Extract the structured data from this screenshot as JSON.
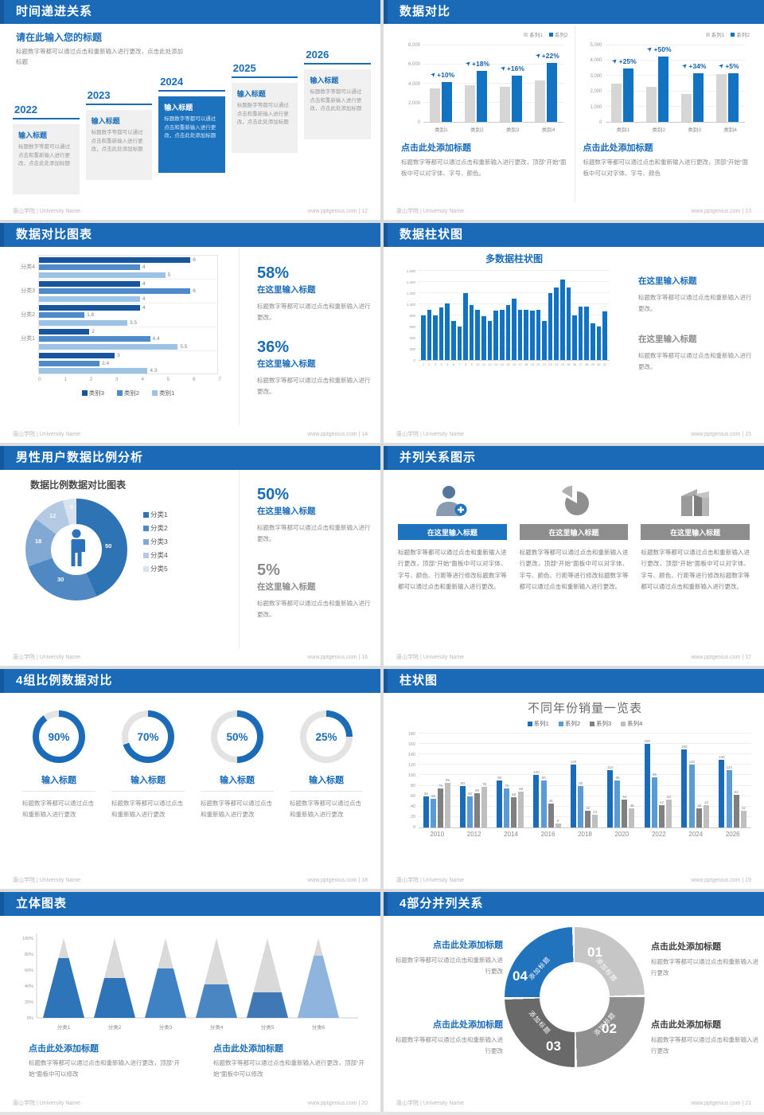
{
  "footer": {
    "left": "唐山学院 | University Name",
    "site": "www.pptgenius.com"
  },
  "colors": {
    "header_blue": "#1a6ab8",
    "accent_blue": "#1b6cb8",
    "bar_blue": "#1273c2",
    "bar_gray": "#d6d6d6",
    "series4": [
      "#1b6cb8",
      "#5b9bd5",
      "#808080",
      "#bfbfbf"
    ],
    "hbar": [
      "#17559e",
      "#4e8bc8",
      "#9cc3e6"
    ],
    "donut": [
      "#2e74b5",
      "#4f88c2",
      "#82a9d4",
      "#b4c9e2",
      "#d9e3f0"
    ],
    "cones": [
      "#2e74b8",
      "#2e74b8",
      "#3f82c4",
      "#4a86c2",
      "#3f78b4",
      "#8fb4de"
    ],
    "cone_gray": "#d9d9d9",
    "ring4": [
      "#c6c6c6",
      "#8f8f8f",
      "#696969",
      "#2173bd"
    ]
  },
  "slides": [
    {
      "title": "时间递进关系",
      "page": "12",
      "footer_right": "www.pptgenius.com | 12",
      "intro_title": "请在此输入您的标题",
      "intro_body": "标题数字等都可以通过点击和重新输入进行更改，点击此处添加标题",
      "items": [
        {
          "year": "2022",
          "title": "输入标题",
          "body": "标题数字等都可以通过点击和重新输入进行更改，点击此处添加标题",
          "active": false
        },
        {
          "year": "2023",
          "title": "输入标题",
          "body": "标题数字等都可以通过点击和重新输入进行更改，点击此处添加标题",
          "active": false
        },
        {
          "year": "2024",
          "title": "输入标题",
          "body": "标题数字等都可以通过点击和重新输入进行更改，点击此处添加标题",
          "active": true
        },
        {
          "year": "2025",
          "title": "输入标题",
          "body": "标题数字等都可以通过点击和重新输入进行更改，点击此处添加标题",
          "active": false
        },
        {
          "year": "2026",
          "title": "输入标题",
          "body": "标题数字等都可以通过点击和重新输入进行更改，点击此处添加标题",
          "active": false
        }
      ]
    },
    {
      "title": "数据对比",
      "page": "13",
      "footer_right": "www.pptgenius.com | 13",
      "charts": [
        {
          "type": "bar",
          "legend": [
            "系列1",
            "系列2"
          ],
          "ymax": 8000,
          "yticks": [
            "8,000",
            "6,000",
            "4,000",
            "2,000",
            "0"
          ],
          "categories": [
            "类别1",
            "类别2",
            "类别3",
            "类别4"
          ],
          "series1": [
            3500,
            3800,
            3700,
            4300
          ],
          "series2": [
            4200,
            5300,
            4800,
            6200
          ],
          "pct": [
            "+10%",
            "+18%",
            "+16%",
            "+22%"
          ],
          "heading": "点击此处添加标题",
          "body": "标题数字等都可以通过点击和重新输入进行更改，顶部“开始”面板中可以对字体、字号、颜色。"
        },
        {
          "type": "bar",
          "legend": [
            "系列1",
            "系列2"
          ],
          "ymax": 5000,
          "yticks": [
            "5,000",
            "4,000",
            "3,000",
            "2,000",
            "1,000",
            "0"
          ],
          "categories": [
            "类别1",
            "类别2",
            "类别3",
            "类别4"
          ],
          "series1": [
            2500,
            2300,
            1800,
            3100
          ],
          "series2": [
            3500,
            4250,
            3200,
            3200
          ],
          "pct": [
            "+25%",
            "+50%",
            "+34%",
            "+5%"
          ],
          "heading": "点击此处添加标题",
          "body": "标题数字等都可以通过点击和重新输入进行更改，顶部“开始”面板中可以对字体、字号、颜色"
        }
      ]
    },
    {
      "title": "数据对比图表",
      "page": "14",
      "footer_right": "www.pptgenius.com | 14",
      "chart": {
        "type": "bar",
        "orientation": "horizontal",
        "xmax": 7,
        "xticks": [
          "0",
          "1",
          "2",
          "3",
          "4",
          "5",
          "6",
          "7"
        ],
        "legend": [
          "类别3",
          "类别2",
          "类别1"
        ],
        "groups": [
          {
            "label": "分类4",
            "values": [
              6,
              4,
              5
            ]
          },
          {
            "label": "分类3",
            "values": [
              4,
              6,
              4
            ]
          },
          {
            "label": "分类2",
            "values": [
              4,
              1.8,
              3.5
            ]
          },
          {
            "label": "分类1",
            "values": [
              2,
              4.4,
              5.5
            ]
          },
          {
            "label": "",
            "values": [
              3,
              2.4,
              4.3
            ]
          }
        ]
      },
      "stats": [
        {
          "value": "58%",
          "heading": "在这里输入标题",
          "body": "标题数字等都可以通过点击和重新输入进行更改。",
          "accent": true
        },
        {
          "value": "36%",
          "heading": "在这里输入标题",
          "body": "标题数字等都可以通过点击和重新输入进行更改。",
          "accent": true
        }
      ]
    },
    {
      "title": "数据柱状图",
      "page": "15",
      "footer_right": "www.pptgenius.com | 15",
      "chart": {
        "type": "bar",
        "title": "多数据柱状图",
        "ymax": 1600,
        "yticks": [
          "1,600",
          "1,400",
          "1,200",
          "1,000",
          "800",
          "600",
          "400",
          "200",
          "0"
        ],
        "xlabels": [
          "1",
          "2",
          "3",
          "4",
          "5",
          "6",
          "7",
          "8",
          "9",
          "10",
          "11",
          "12",
          "13",
          "14",
          "15",
          "16",
          "17",
          "18",
          "19",
          "20",
          "21",
          "22",
          "23",
          "24",
          "25",
          "26",
          "27",
          "28",
          "29",
          "30",
          "31"
        ],
        "values": [
          800,
          900,
          800,
          950,
          1020,
          700,
          600,
          1200,
          980,
          900,
          780,
          700,
          890,
          900,
          990,
          1100,
          900,
          900,
          880,
          900,
          700,
          1200,
          1300,
          1450,
          1300,
          800,
          960,
          960,
          660,
          600,
          870
        ]
      },
      "stats": [
        {
          "heading": "在这里输入标题",
          "body": "标题数字等都可以通过点击和重新输入进行更改。",
          "accent": true
        },
        {
          "heading": "在这里输入标题",
          "body": "标题数字等都可以通过点击和重新输入进行更改。",
          "accent": false
        }
      ]
    },
    {
      "title": "男性用户数据比例分析",
      "page": "16",
      "footer_right": "www.pptgenius.com | 16",
      "chart": {
        "type": "pie",
        "title": "数据比例数据对比图表",
        "slices": [
          {
            "label": "分类1",
            "value": 50
          },
          {
            "label": "分类2",
            "value": 30
          },
          {
            "label": "分类3",
            "value": 18
          },
          {
            "label": "分类4",
            "value": 12
          },
          {
            "label": "分类5",
            "value": 5
          }
        ]
      },
      "stats": [
        {
          "value": "50%",
          "heading": "在这里输入标题",
          "body": "标题数字等都可以通过点击和重新输入进行更改。",
          "accent": true
        },
        {
          "value": "5%",
          "heading": "在这里输入标题",
          "body": "标题数字等都可以通过点击和重新输入进行更改。",
          "accent": false
        }
      ]
    },
    {
      "title": "并列关系图示",
      "page": "17",
      "footer_right": "www.pptgenius.com | 17",
      "columns": [
        {
          "icon": "person-add-icon",
          "heading": "在这里输入标题",
          "accent": true,
          "body": "标题数字等都可以通过点击和重新输入进行更改，顶部“开始”面板中可以对字体、字号、颜色、行距等进行修改标题数字等都可以通过点击和重新输入进行更改。"
        },
        {
          "icon": "pie-chart-icon",
          "heading": "在这里输入标题",
          "accent": false,
          "body": "标题数字等都可以通过点击和重新输入进行更改，顶部“开始”面板中可以对字体、字号、颜色、行距等进行修改标题数字等都可以通过点击和重新输入进行更改。"
        },
        {
          "icon": "building-icon",
          "heading": "在这里输入标题",
          "accent": false,
          "body": "标题数字等都可以通过点击和重新输入进行更改，顶部“开始”面板中可以对字体、字号、颜色、行距等进行修改标题数字等都可以通过点击和重新输入进行更改。"
        }
      ]
    },
    {
      "title": "4组比例数据对比",
      "page": "18",
      "footer_right": "www.pptgenius.com | 18",
      "rings": [
        {
          "pct": 90,
          "label": "90%",
          "heading": "输入标题",
          "body": "标题数字等都可以通过点击和重新输入进行更改"
        },
        {
          "pct": 70,
          "label": "70%",
          "heading": "输入标题",
          "body": "标题数字等都可以通过点击和重新输入进行更改"
        },
        {
          "pct": 50,
          "label": "50%",
          "heading": "输入标题",
          "body": "标题数字等都可以通过点击和重新输入进行更改"
        },
        {
          "pct": 25,
          "label": "25%",
          "heading": "输入标题",
          "body": "标题数字等都可以通过点击和重新输入进行更改"
        }
      ]
    },
    {
      "title": "柱状图",
      "page": "19",
      "footer_right": "www.pptgenius.com | 19",
      "chart": {
        "type": "bar",
        "title": "不同年份销量一览表",
        "ymax": 180,
        "legend": [
          "系列1",
          "系列2",
          "系列3",
          "系列4"
        ],
        "yticks": [
          "180",
          "160",
          "140",
          "120",
          "100",
          "80",
          "60",
          "40",
          "20",
          "0"
        ],
        "categories": [
          "2010",
          "2012",
          "2014",
          "2016",
          "2018",
          "2020",
          "2022",
          "2024",
          "2026"
        ],
        "series": [
          {
            "name": "系列1",
            "values": [
              60,
              80,
              90,
              100,
              120,
              110,
              160,
              150,
              130
            ]
          },
          {
            "name": "系列2",
            "values": [
              55,
              60,
              75,
              90,
              80,
              90,
              96,
              120,
              110
            ]
          },
          {
            "name": "系列3",
            "values": [
              75,
              65,
              58,
              46,
              32,
              54,
              42,
              36,
              62
            ]
          },
          {
            "name": "系列4",
            "values": [
              85,
              78,
              68,
              8,
              24,
              36,
              53,
              42,
              32
            ]
          }
        ]
      }
    },
    {
      "title": "立体图表",
      "page": "20",
      "footer_right": "www.pptgenius.com | 20",
      "chart": {
        "type": "bar",
        "style": "cone",
        "yticks": [
          "100%",
          "80%",
          "60%",
          "40%",
          "20%",
          "0%"
        ],
        "categories": [
          "分类1",
          "分类2",
          "分类3",
          "分类4",
          "分类5",
          "分类6"
        ],
        "values": [
          75,
          50,
          62,
          42,
          32,
          78
        ]
      },
      "texts": [
        {
          "heading": "点击此处添加标题",
          "body": "标题数字等都可以通过点击和重新输入进行更改，顶部“开始”面板中可以修改"
        },
        {
          "heading": "点击此处添加标题",
          "body": "标题数字等都可以通过点击和重新输入进行更改，顶部“开始”面板中可以修改"
        }
      ]
    },
    {
      "title": "4部分并列关系",
      "page": "21",
      "footer_right": "www.pptgenius.com | 21",
      "segments": [
        {
          "num": "01",
          "label": "添加标题"
        },
        {
          "num": "02",
          "label": "添加标题"
        },
        {
          "num": "03",
          "label": "添加标题"
        },
        {
          "num": "04",
          "label": "添加标题"
        }
      ],
      "texts": [
        {
          "heading": "点击此处添加标题",
          "body": "标题数字等都可以通过点击和重新输入进行更改",
          "accent": true
        },
        {
          "heading": "点击此处添加标题",
          "body": "标题数字等都可以通过点击和重新输入进行更改",
          "accent": false
        },
        {
          "heading": "点击此处添加标题",
          "body": "标题数字等都可以通过点击和重新输入进行更改",
          "accent": true
        },
        {
          "heading": "点击此处添加标题",
          "body": "标题数字等都可以通过点击和重新输入进行更改",
          "accent": false
        }
      ]
    }
  ]
}
